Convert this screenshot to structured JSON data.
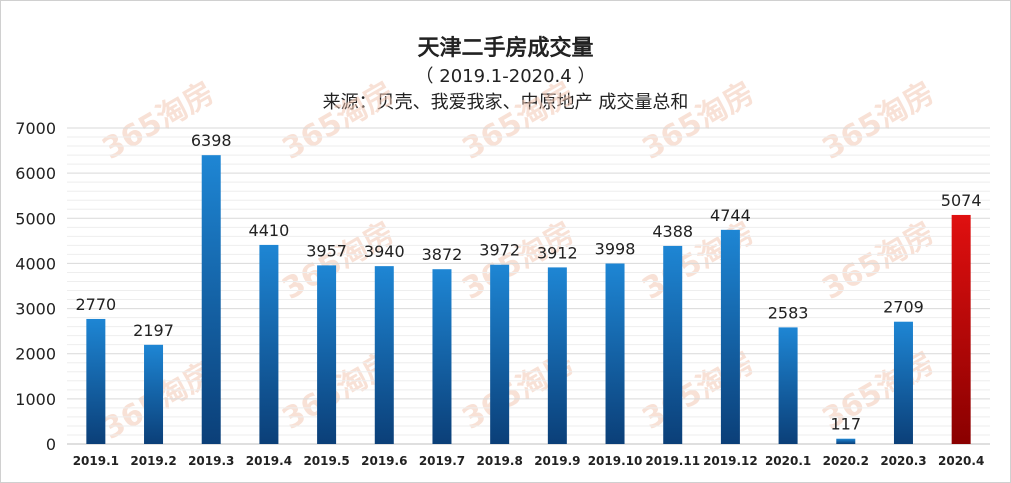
{
  "chart_data": {
    "type": "bar",
    "title": "天津二手房成交量",
    "subtitle": "（ 2019.1-2020.4 ）",
    "source": "来源：贝壳、我爱我家、中原地产 成交量总和",
    "categories": [
      "2019.1",
      "2019.2",
      "2019.3",
      "2019.4",
      "2019.5",
      "2019.6",
      "2019.7",
      "2019.8",
      "2019.9",
      "2019.10",
      "2019.11",
      "2019.12",
      "2020.1",
      "2020.2",
      "2020.3",
      "2020.4"
    ],
    "values": [
      2770,
      2197,
      6398,
      4410,
      3957,
      3940,
      3872,
      3972,
      3912,
      3998,
      4388,
      4744,
      2583,
      117,
      2709,
      5074
    ],
    "highlight_index": 15,
    "ylim": [
      0,
      7000
    ],
    "yticks": [
      0,
      1000,
      2000,
      3000,
      4000,
      5000,
      6000,
      7000
    ],
    "grid": true,
    "xlabel": "",
    "ylabel": ""
  },
  "colors": {
    "bar_top": "#1e86d4",
    "bar_bottom": "#0b3f78",
    "highlight_top": "#e01010",
    "highlight_bottom": "#8a0000",
    "grid": "#d9d9d9",
    "axis": "#bfbfbf"
  },
  "watermark": "365淘房"
}
